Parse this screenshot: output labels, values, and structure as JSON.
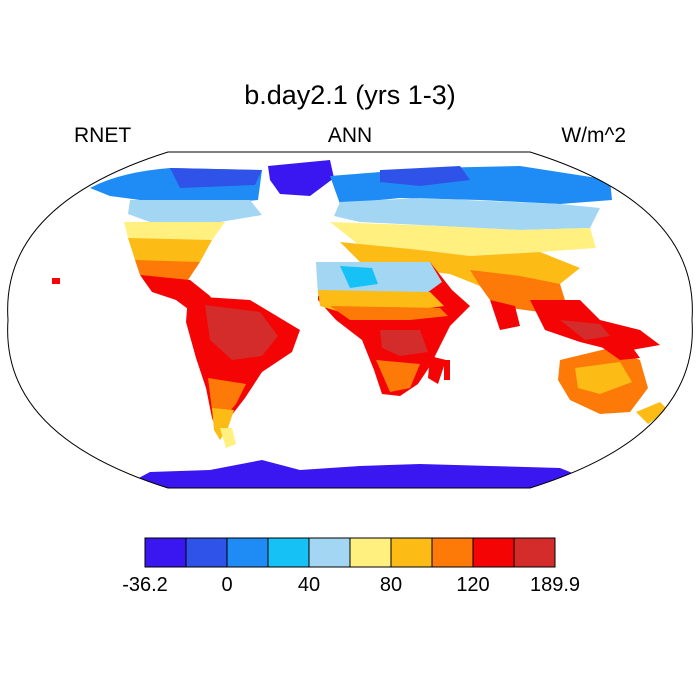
{
  "title": "b.day2.1 (yrs 1-3)",
  "left_label": "RNET",
  "center_label": "ANN",
  "right_label": "W/m^2",
  "colorbar": {
    "colors": [
      "#3a16f0",
      "#2f52e8",
      "#1f8cf5",
      "#16c2f5",
      "#a3d6f2",
      "#fff080",
      "#fdbb16",
      "#fd7a08",
      "#f40404",
      "#d42b2b"
    ],
    "tick_labels": [
      "-36.2",
      "0",
      "40",
      "80",
      "120",
      "189.9"
    ]
  },
  "map": {
    "projection": "Robinson",
    "variable": "RNET",
    "units": "W/m^2"
  }
}
